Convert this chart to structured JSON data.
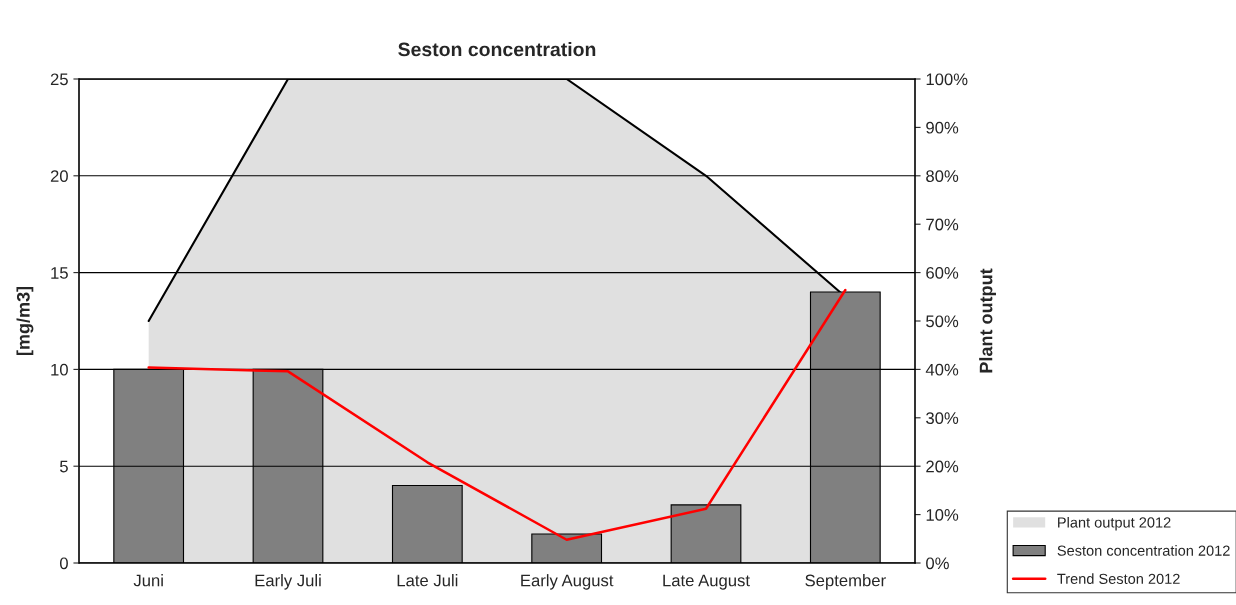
{
  "chart_data": {
    "type": "bar",
    "title": "Seston concentration",
    "categories": [
      "Juni",
      "Early Juli",
      "Late Juli",
      "Early August",
      "Late August",
      "September"
    ],
    "series": [
      {
        "name": "Plant output 2012",
        "type": "area",
        "axis": "y2",
        "color": "#e0e0e0",
        "values": [
          50,
          100,
          100,
          100,
          80,
          55
        ]
      },
      {
        "name": "Seston concentration 2012",
        "color": "#808080",
        "values": [
          10,
          10,
          4,
          1.5,
          3,
          14
        ]
      },
      {
        "name": "Trend Seston 2012",
        "type": "line",
        "color": "#ff0000",
        "values": [
          10.1,
          9.9,
          5.2,
          1.2,
          2.8,
          14.1
        ]
      }
    ],
    "ylabel": "[mg/m3]",
    "y2label": "Plant output",
    "ylim": [
      0,
      25
    ],
    "yticks": [
      0,
      5,
      10,
      15,
      20,
      25
    ],
    "y2lim": [
      0,
      100
    ],
    "y2ticks": [
      {
        "value": 0,
        "label": "0%"
      },
      {
        "value": 10,
        "label": "10%"
      },
      {
        "value": 20,
        "label": "20%"
      },
      {
        "value": 30,
        "label": "30%"
      },
      {
        "value": 40,
        "label": "40%"
      },
      {
        "value": 50,
        "label": "50%"
      },
      {
        "value": 60,
        "label": "60%"
      },
      {
        "value": 70,
        "label": "70%"
      },
      {
        "value": 80,
        "label": "80%"
      },
      {
        "value": 90,
        "label": "90%"
      },
      {
        "value": 100,
        "label": "100%"
      }
    ],
    "grid": "y",
    "legend": "bottom right"
  }
}
